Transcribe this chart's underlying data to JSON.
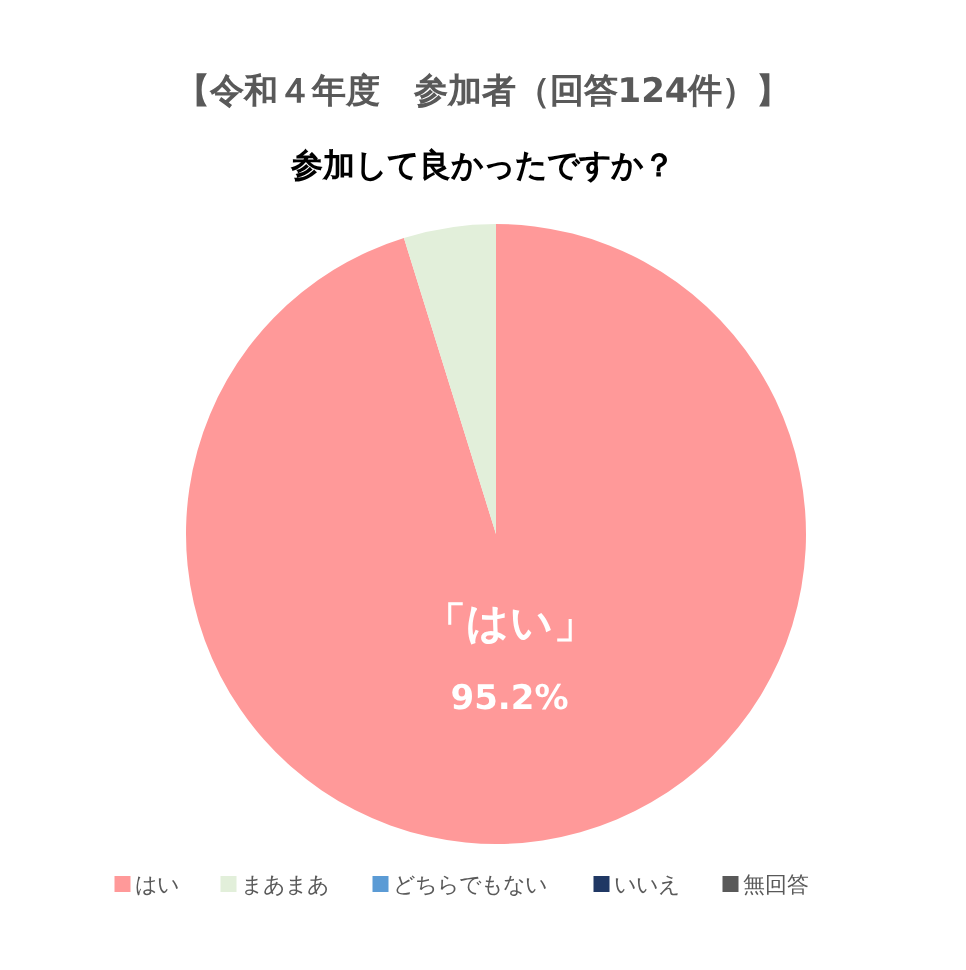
{
  "chart_data": {
    "type": "pie",
    "title": "【令和４年度　参加者（回答124件）】",
    "subtitle": "参加して良かったですか？",
    "categories": [
      "はい",
      "まあまあ",
      "どちらでもない",
      "いいえ",
      "無回答"
    ],
    "values": [
      95.2,
      4.8,
      0,
      0,
      0
    ],
    "colors": [
      "#ff9999",
      "#e2efda",
      "#5b9bd5",
      "#203864",
      "#595959"
    ],
    "value_labels": [
      "「はい」\n95.2%",
      null,
      null,
      null,
      null
    ],
    "legend": "bottom"
  }
}
